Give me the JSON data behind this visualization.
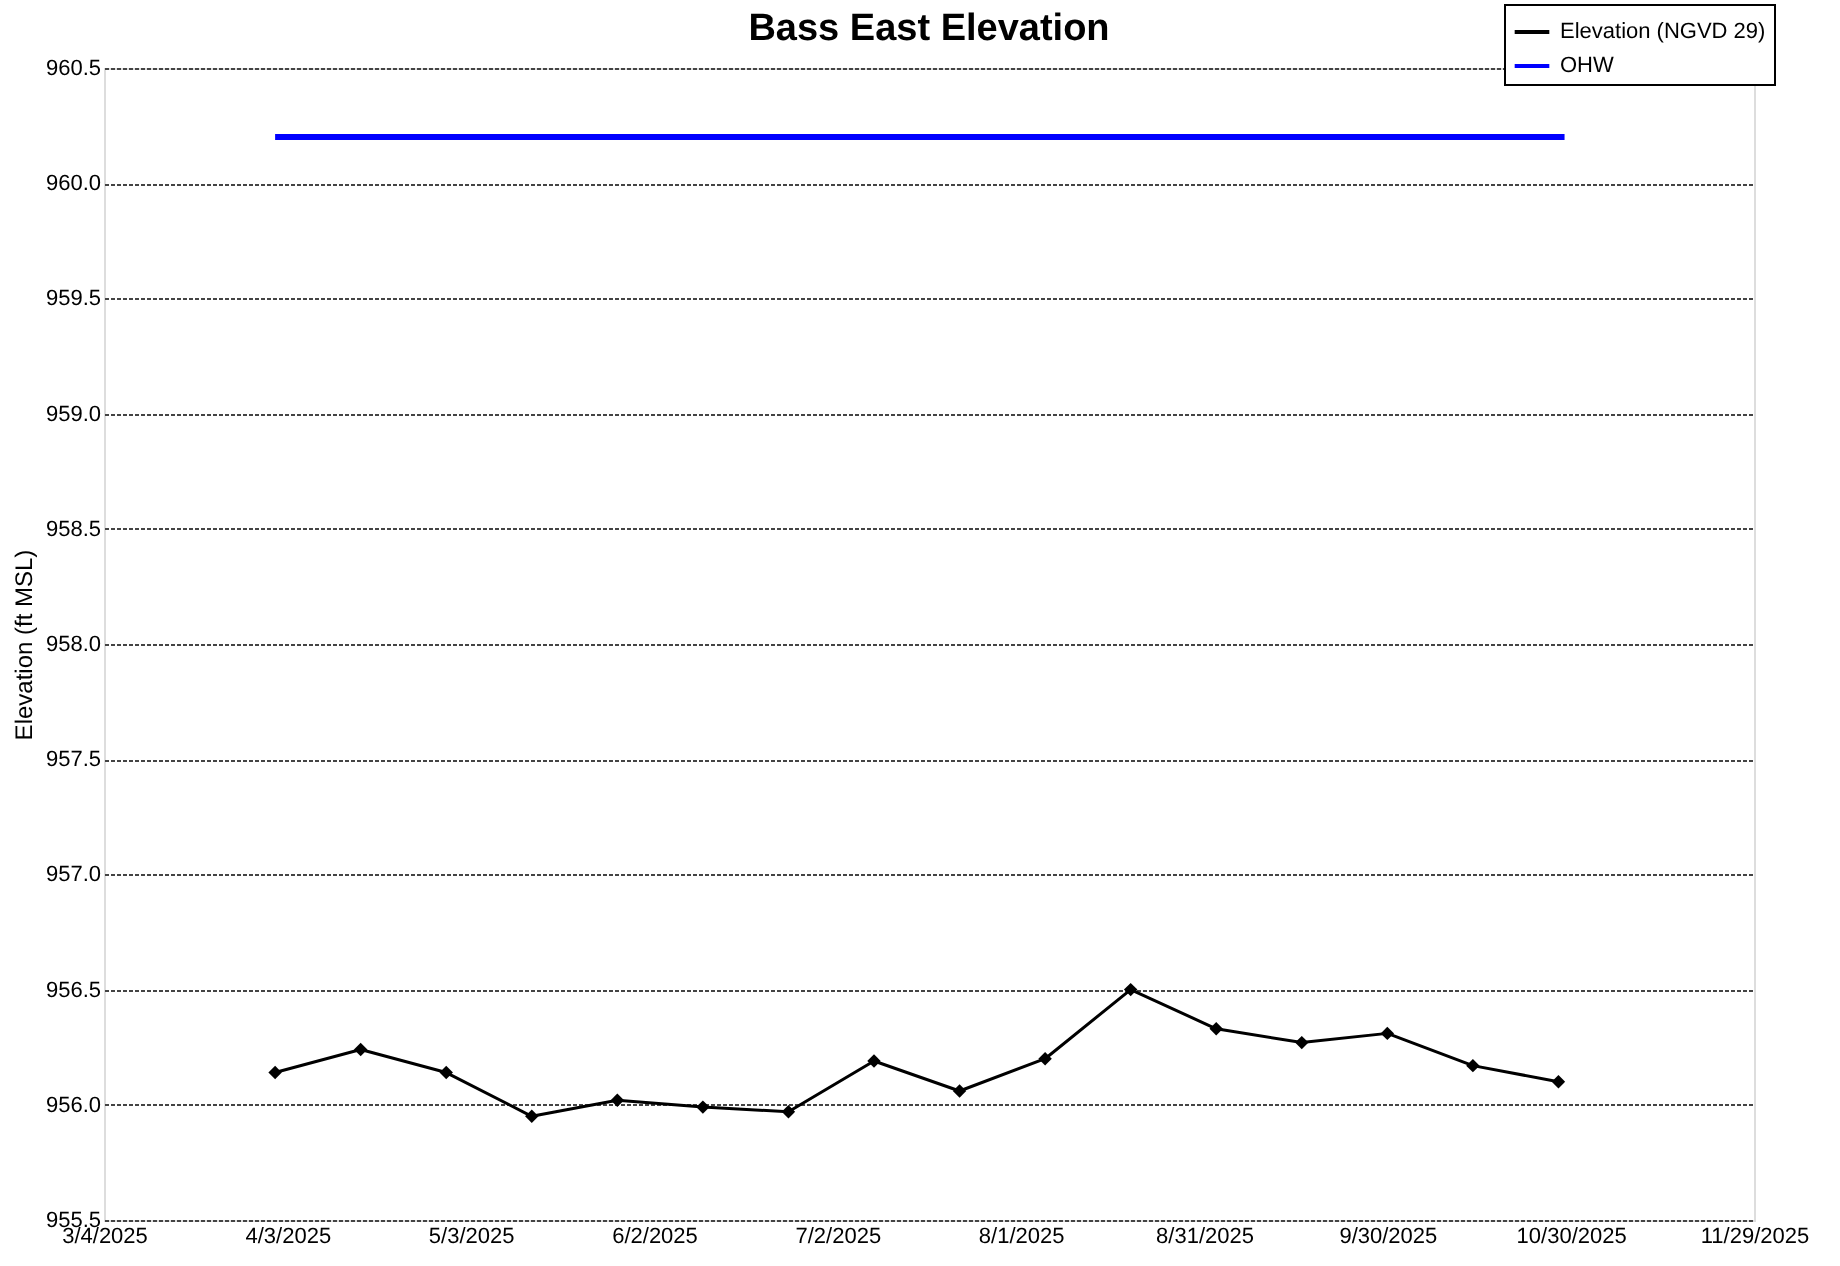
{
  "chart_data": {
    "type": "line",
    "title": "Bass East Elevation",
    "ylabel": "Elevation (ft MSL)",
    "xlim": [
      "2025-03-04",
      "2025-11-29"
    ],
    "xticks": [
      {
        "value": "2025-03-04",
        "label": "3/4/2025"
      },
      {
        "value": "2025-04-03",
        "label": "4/3/2025"
      },
      {
        "value": "2025-05-03",
        "label": "5/3/2025"
      },
      {
        "value": "2025-06-02",
        "label": "6/2/2025"
      },
      {
        "value": "2025-07-02",
        "label": "7/2/2025"
      },
      {
        "value": "2025-08-01",
        "label": "8/1/2025"
      },
      {
        "value": "2025-08-31",
        "label": "8/31/2025"
      },
      {
        "value": "2025-09-30",
        "label": "9/30/2025"
      },
      {
        "value": "2025-10-30",
        "label": "10/30/2025"
      },
      {
        "value": "2025-11-29",
        "label": "11/29/2025"
      }
    ],
    "ylim": [
      955.5,
      960.5
    ],
    "yticks": [
      {
        "value": 955.5,
        "label": "955.5"
      },
      {
        "value": 956,
        "label": "956.0"
      },
      {
        "value": 956.5,
        "label": "956.5"
      },
      {
        "value": 957,
        "label": "957.0"
      },
      {
        "value": 957.5,
        "label": "957.5"
      },
      {
        "value": 958,
        "label": "958.0"
      },
      {
        "value": 958.5,
        "label": "958.5"
      },
      {
        "value": 959,
        "label": "959.0"
      },
      {
        "value": 959.5,
        "label": "959.5"
      },
      {
        "value": 960,
        "label": "960.0"
      },
      {
        "value": 960.5,
        "label": "960.5"
      }
    ],
    "grid": "y",
    "legend": "top right",
    "marker": "diamond",
    "line_style": "solid",
    "series": [
      {
        "name": "Elevation (NGVD 29)",
        "color": "#000000",
        "x": [
          "2025-04-01",
          "2025-04-15",
          "2025-04-29",
          "2025-05-13",
          "2025-05-27",
          "2025-06-10",
          "2025-06-24",
          "2025-07-08",
          "2025-07-22",
          "2025-08-05",
          "2025-08-19",
          "2025-09-02",
          "2025-09-16",
          "2025-09-30",
          "2025-10-14",
          "2025-10-28"
        ],
        "values": [
          956.14,
          956.24,
          956.14,
          955.95,
          956.02,
          955.99,
          955.97,
          956.19,
          956.06,
          956.2,
          956.5,
          956.33,
          956.27,
          956.31,
          956.17,
          956.1
        ]
      },
      {
        "name": "OHW",
        "color": "#0000ff",
        "marker": "none",
        "x": [
          "2025-04-01",
          "2025-10-29"
        ],
        "values": [
          960.2,
          960.2
        ]
      }
    ]
  }
}
